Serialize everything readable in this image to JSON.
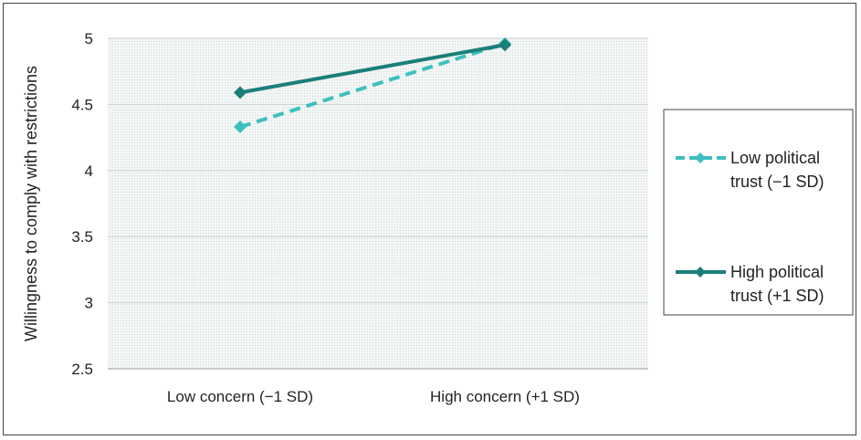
{
  "chart_data": {
    "type": "line",
    "title": "",
    "xlabel": "",
    "ylabel": "Willingness to comply with restrictions",
    "categories": [
      "Low concern (−1 SD)",
      "High concern (+1 SD)"
    ],
    "ylim": [
      2.5,
      5
    ],
    "yticks": [
      "2.5",
      "3",
      "3.5",
      "4",
      "4.5",
      "5"
    ],
    "grid": true,
    "legend_position": "right",
    "series": [
      {
        "name_lines": [
          "Low political",
          "trust (−1 SD)"
        ],
        "values": [
          4.33,
          4.96
        ],
        "color": "#3fbfbf",
        "dashed": true,
        "marker": "diamond"
      },
      {
        "name_lines": [
          "High political",
          "trust (+1 SD)"
        ],
        "values": [
          4.59,
          4.95
        ],
        "color": "#1a7f7a",
        "dashed": false,
        "marker": "diamond"
      }
    ]
  }
}
